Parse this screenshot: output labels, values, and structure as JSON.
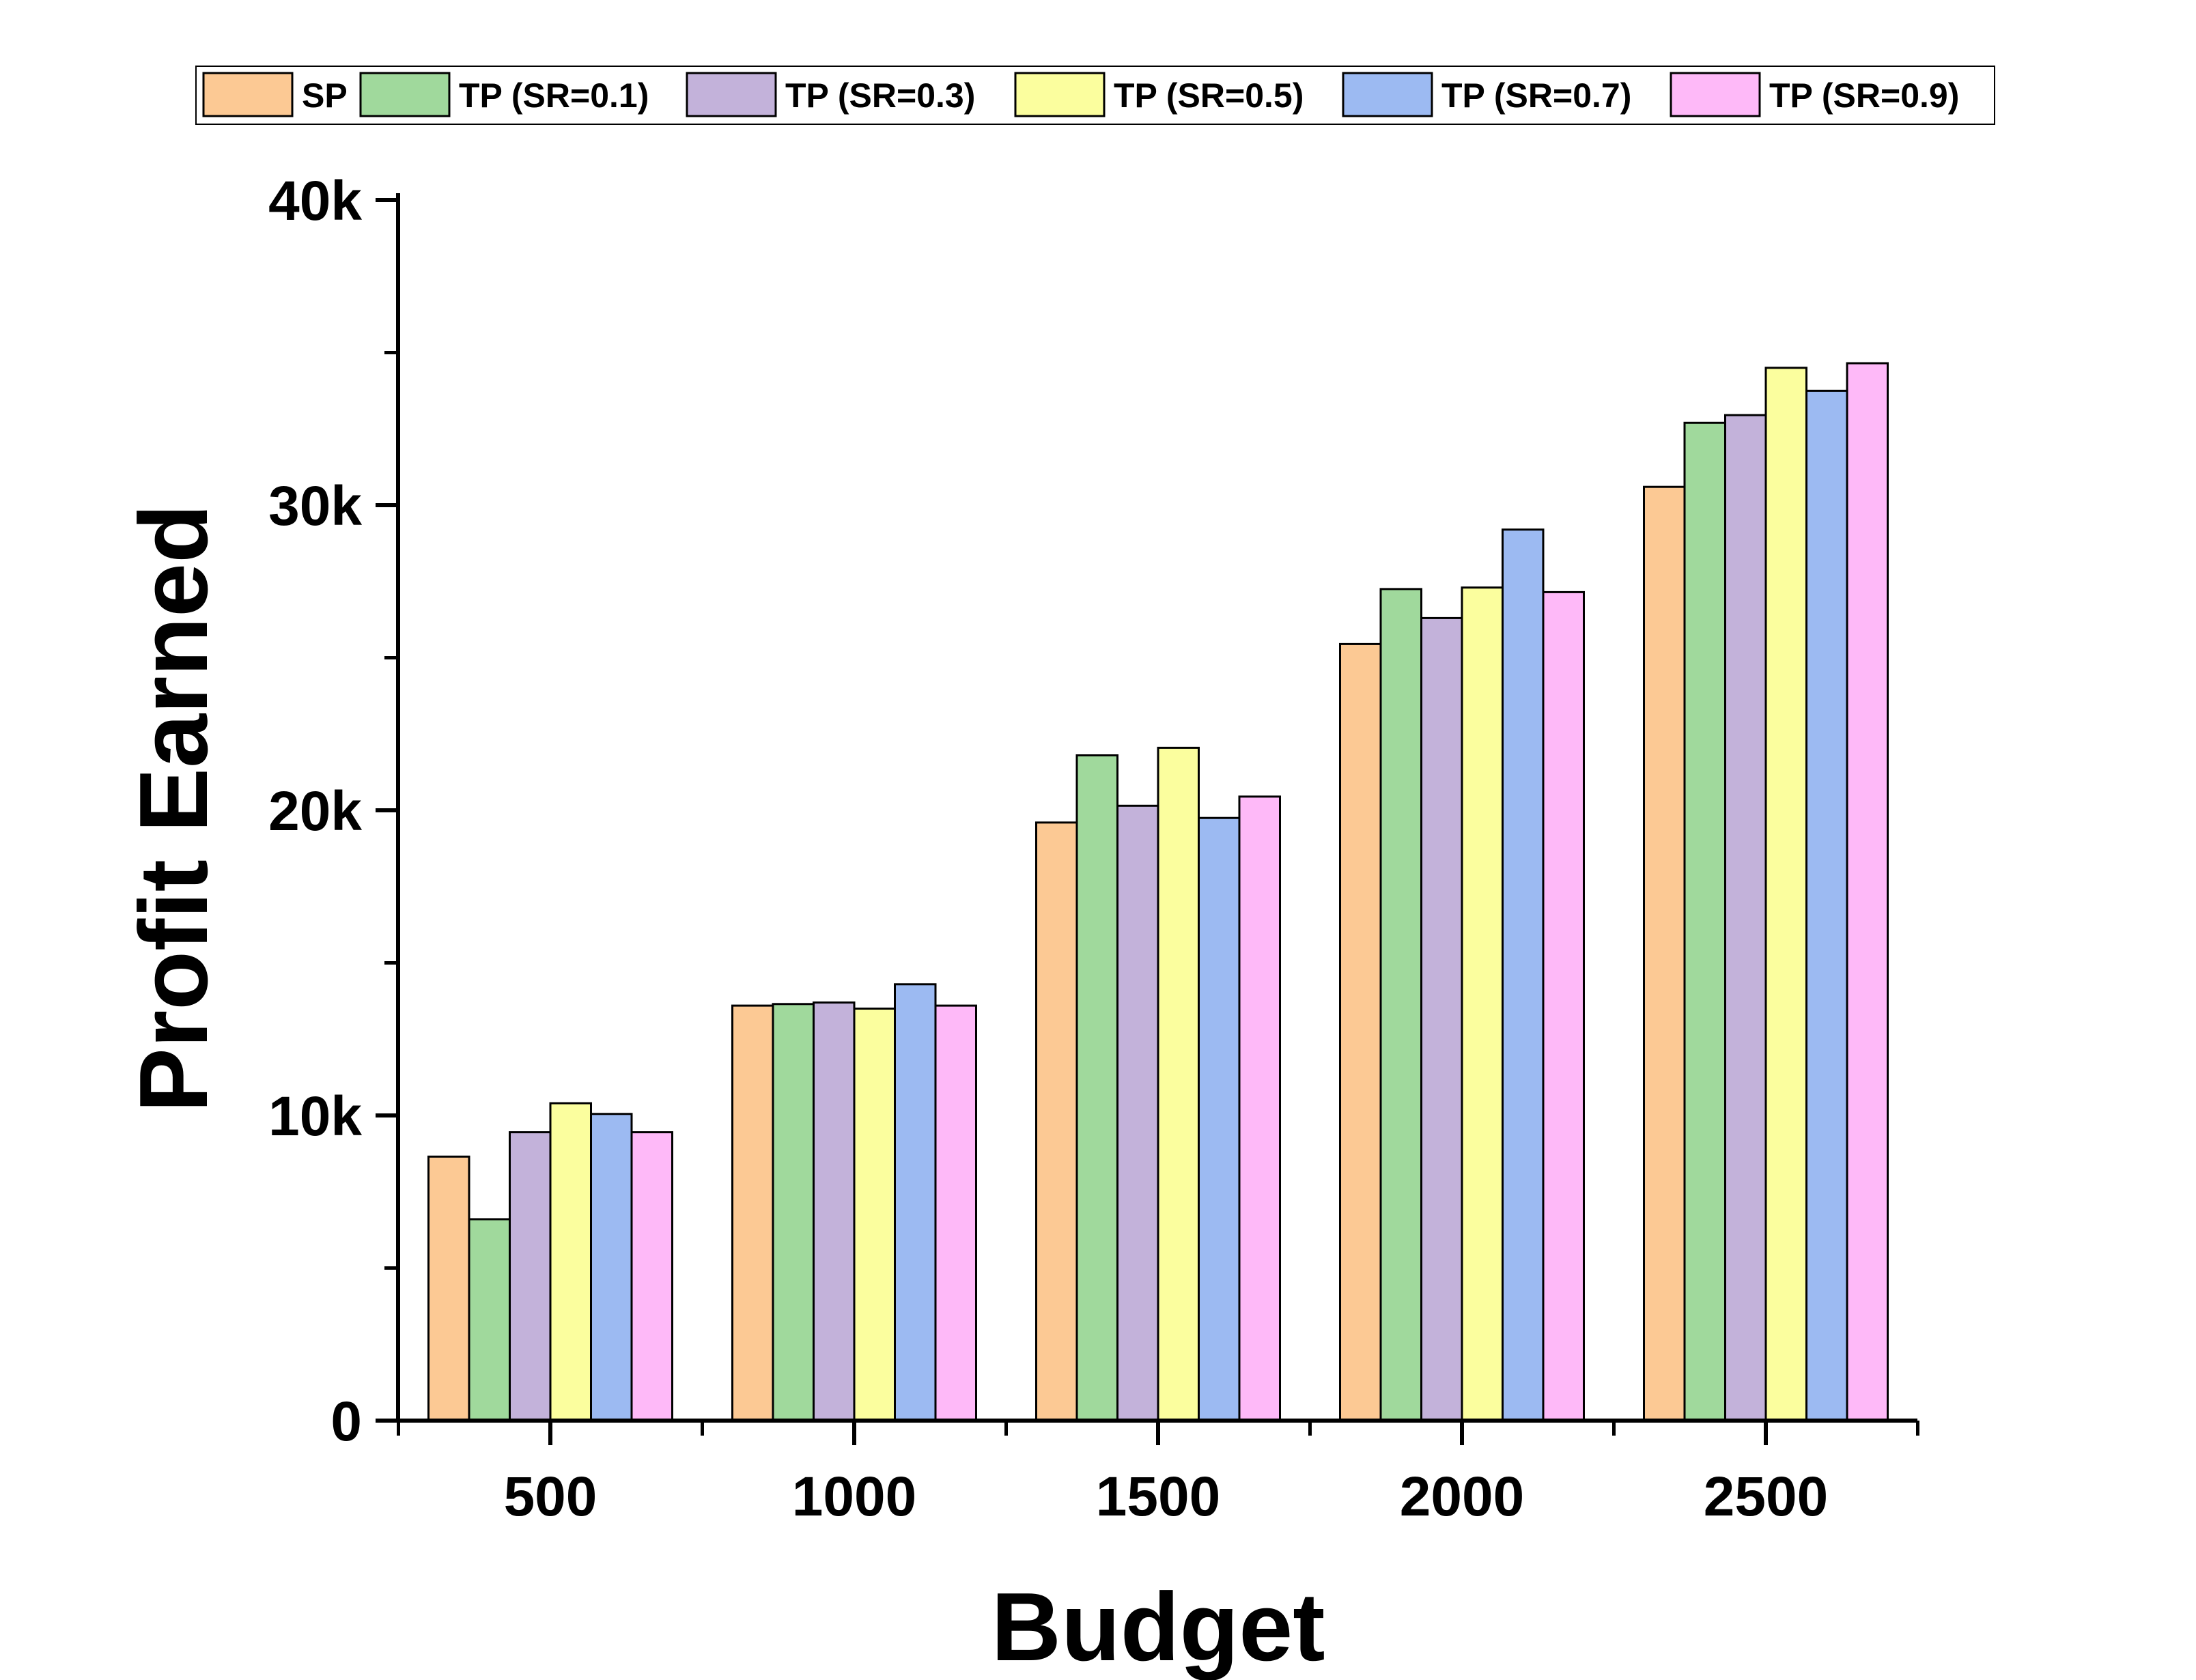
{
  "chart_data": {
    "type": "bar",
    "title": "",
    "xlabel": "Budget",
    "ylabel": "Profit Earned",
    "categories": [
      "500",
      "1000",
      "1500",
      "2000",
      "2500"
    ],
    "ylim": [
      0,
      40000
    ],
    "yticks": [
      {
        "value": 0,
        "label": "0"
      },
      {
        "value": 10000,
        "label": "10k"
      },
      {
        "value": 20000,
        "label": "20k"
      },
      {
        "value": 30000,
        "label": "30k"
      },
      {
        "value": 40000,
        "label": "40k"
      }
    ],
    "y_minor_ticks": [
      5000,
      15000,
      25000,
      35000
    ],
    "grid": false,
    "legend_position": "top",
    "series": [
      {
        "name": "SP",
        "color": "#FCC994",
        "values": [
          8650,
          13600,
          19600,
          25450,
          30600
        ]
      },
      {
        "name": "TP (SR=0.1)",
        "color": "#A0D99C",
        "values": [
          6600,
          13650,
          21800,
          27250,
          32700
        ]
      },
      {
        "name": "TP (SR=0.3)",
        "color": "#C3B2DA",
        "values": [
          9450,
          13700,
          20150,
          26300,
          32950
        ]
      },
      {
        "name": "TP (SR=0.5)",
        "color": "#FBFE9E",
        "values": [
          10400,
          13500,
          22050,
          27300,
          34500
        ]
      },
      {
        "name": "TP (SR=0.7)",
        "color": "#9CBAF2",
        "values": [
          10050,
          14300,
          19750,
          29200,
          33750
        ]
      },
      {
        "name": "TP (SR=0.9)",
        "color": "#FEB9F8",
        "values": [
          9450,
          13600,
          20450,
          27150,
          34650
        ]
      }
    ]
  }
}
